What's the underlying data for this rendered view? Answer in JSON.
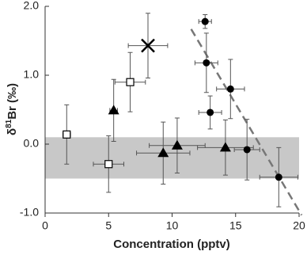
{
  "chart_data": {
    "type": "scatter",
    "xlabel": "Concentration (pptv)",
    "ylabel": {
      "prefix": "δ",
      "sup": "81",
      "suffix": "Br (‰)"
    },
    "xlim": [
      0,
      20
    ],
    "ylim": [
      -1.0,
      2.0
    ],
    "xticks": [
      0,
      5,
      10,
      15,
      20
    ],
    "yticks": [
      {
        "value": 2.0,
        "label": "2.0"
      },
      {
        "value": 1.0,
        "label": "1.0"
      },
      {
        "value": 0.0,
        "label": "0.0"
      },
      {
        "value": -1.0,
        "label": "-1.0"
      }
    ],
    "band": {
      "range": [
        -0.5,
        0.1
      ],
      "color": "#c8c8c8"
    },
    "fit_line": {
      "x": [
        11.5,
        20.2
      ],
      "y": [
        1.67,
        -1.03
      ],
      "color": "#777777"
    },
    "series": [
      {
        "marker": "square",
        "color": "#000000",
        "x": [
          1.7,
          5.0,
          6.7
        ],
        "y": [
          0.14,
          -0.29,
          0.9
        ],
        "xerr": [
          0.3,
          1.2,
          1.2
        ],
        "yerr": [
          0.43,
          0.41,
          0.43
        ]
      },
      {
        "marker": "triangle",
        "color": "#000000",
        "x": [
          5.4,
          9.3,
          10.4,
          14.2
        ],
        "y": [
          0.49,
          -0.13,
          -0.02,
          -0.05
        ],
        "xerr": [
          0.3,
          2.1,
          2.2,
          2.2
        ],
        "yerr": [
          0.45,
          0.45,
          0.4,
          0.4
        ]
      },
      {
        "marker": "cross",
        "color": "#000000",
        "x": [
          8.1
        ],
        "y": [
          1.43
        ],
        "xerr": [
          1.55
        ],
        "yerr": [
          0.47
        ]
      },
      {
        "marker": "circle",
        "color": "#000000",
        "x": [
          12.6,
          12.7,
          14.6,
          13.0,
          15.9,
          18.4
        ],
        "y": [
          1.78,
          1.18,
          0.8,
          0.46,
          -0.08,
          -0.48
        ],
        "xerr": [
          0.5,
          0.9,
          1.1,
          0.9,
          1.0,
          1.5
        ],
        "yerr": [
          0.1,
          0.43,
          0.43,
          0.24,
          0.44,
          0.43
        ]
      }
    ]
  }
}
